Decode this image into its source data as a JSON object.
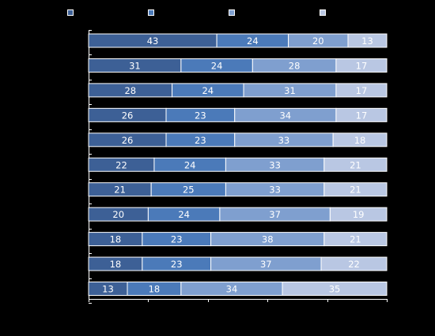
{
  "chart_data": {
    "type": "bar",
    "orientation": "horizontal",
    "stacked": true,
    "percent": true,
    "title": "",
    "xlabel": "",
    "ylabel": "",
    "xlim": [
      0,
      100
    ],
    "grid": false,
    "legend_position": "top",
    "background": "#000000",
    "rows": 11,
    "series": [
      {
        "name": "",
        "color": "#3d6096",
        "values": [
          43,
          31,
          28,
          26,
          26,
          22,
          21,
          20,
          18,
          18,
          13
        ]
      },
      {
        "name": "",
        "color": "#4b7ab9",
        "values": [
          24,
          24,
          24,
          23,
          23,
          24,
          25,
          24,
          23,
          23,
          18
        ]
      },
      {
        "name": "",
        "color": "#7f9fcf",
        "values": [
          20,
          28,
          31,
          34,
          33,
          33,
          33,
          37,
          38,
          37,
          34
        ]
      },
      {
        "name": "",
        "color": "#b9c7e3",
        "values": [
          13,
          17,
          17,
          17,
          18,
          21,
          21,
          19,
          21,
          22,
          35
        ]
      }
    ]
  }
}
